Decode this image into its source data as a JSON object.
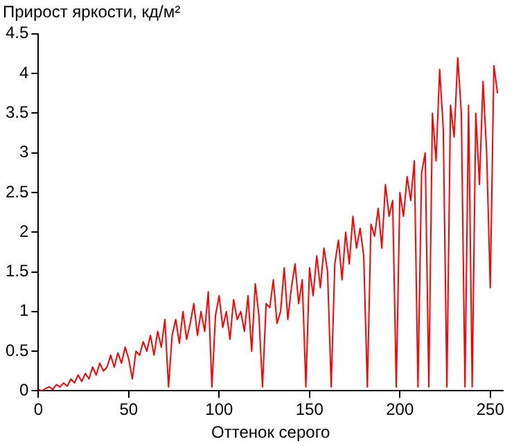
{
  "chart_data": {
    "type": "line",
    "title": "Прирост яркости, кд/м²",
    "xlabel": "Оттенок серого",
    "x": [
      0,
      2,
      4,
      6,
      8,
      10,
      12,
      14,
      16,
      18,
      20,
      22,
      24,
      26,
      28,
      30,
      32,
      34,
      36,
      38,
      40,
      42,
      44,
      46,
      48,
      50,
      52,
      54,
      56,
      58,
      60,
      62,
      64,
      66,
      68,
      70,
      72,
      74,
      76,
      78,
      80,
      82,
      84,
      86,
      88,
      90,
      92,
      94,
      96,
      98,
      100,
      102,
      104,
      106,
      108,
      110,
      112,
      114,
      116,
      118,
      120,
      122,
      124,
      126,
      128,
      130,
      132,
      134,
      136,
      138,
      140,
      142,
      144,
      146,
      148,
      150,
      152,
      154,
      156,
      158,
      160,
      162,
      164,
      166,
      168,
      170,
      172,
      174,
      176,
      178,
      180,
      182,
      184,
      186,
      188,
      190,
      192,
      194,
      196,
      198,
      200,
      202,
      204,
      206,
      208,
      210,
      212,
      214,
      216,
      218,
      220,
      222,
      224,
      226,
      228,
      230,
      232,
      234,
      236,
      238,
      240,
      242,
      244,
      246,
      248,
      250,
      252,
      254
    ],
    "series": [
      {
        "color": "#ff0000",
        "values": [
          0.02,
          0,
          0.03,
          0.05,
          0.02,
          0.08,
          0.05,
          0.1,
          0.06,
          0.15,
          0.1,
          0.2,
          0.12,
          0.22,
          0.15,
          0.3,
          0.2,
          0.35,
          0.25,
          0.3,
          0.45,
          0.3,
          0.48,
          0.35,
          0.55,
          0.4,
          0.15,
          0.5,
          0.45,
          0.62,
          0.5,
          0.7,
          0.45,
          0.75,
          0.55,
          0.9,
          0.05,
          0.7,
          0.9,
          0.6,
          1.0,
          0.65,
          0.85,
          1.1,
          0.7,
          1.0,
          0.75,
          1.25,
          0.05,
          0.95,
          1.2,
          0.8,
          1.0,
          0.65,
          1.15,
          0.9,
          1.0,
          0.75,
          1.2,
          0.5,
          1.35,
          0.95,
          0.05,
          1.1,
          1.05,
          1.4,
          0.85,
          1.0,
          1.55,
          0.9,
          1.3,
          1.6,
          1.1,
          1.4,
          0.05,
          1.55,
          1.2,
          1.7,
          1.3,
          1.8,
          1.5,
          0.05,
          1.6,
          1.9,
          1.4,
          2.0,
          1.6,
          2.2,
          1.8,
          2.05,
          1.7,
          0.05,
          2.1,
          1.95,
          2.3,
          1.8,
          2.6,
          2.2,
          2.4,
          0.05,
          2.5,
          2.2,
          2.7,
          2.4,
          2.9,
          0.05,
          2.75,
          3.0,
          0.05,
          3.5,
          2.9,
          4.05,
          3.3,
          0.05,
          3.6,
          3.2,
          4.2,
          3.5,
          0.05,
          3.6,
          0.05,
          3.5,
          2.6,
          3.9,
          3.0,
          1.3,
          4.1,
          3.75
        ]
      }
    ],
    "xlim": [
      0,
      257
    ],
    "xticks": [
      0,
      50,
      100,
      150,
      200,
      250
    ],
    "ylim": [
      0,
      4.5
    ],
    "yticks": [
      0,
      0.5,
      1,
      1.5,
      2,
      2.5,
      3,
      3.5,
      4,
      4.5
    ],
    "grid": false,
    "legend": false,
    "marker": "none",
    "line_style": "solid"
  }
}
